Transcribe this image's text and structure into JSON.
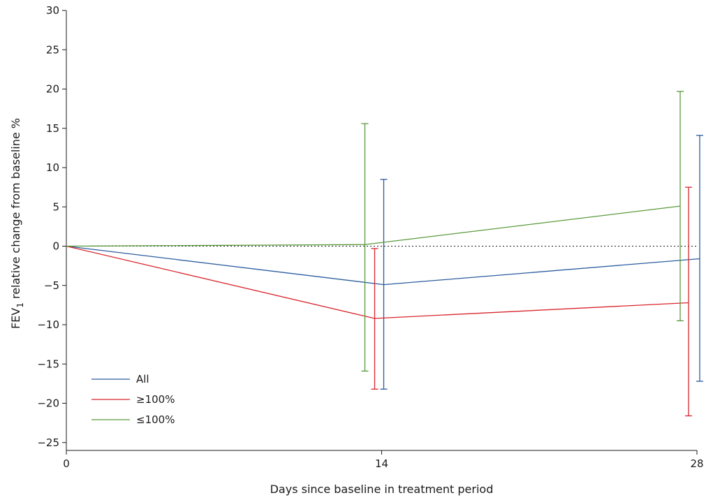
{
  "chart_data": {
    "type": "line",
    "title": "",
    "xlabel": "Days since baseline in treatment period",
    "ylabel_main": "FEV",
    "ylabel_sub": "1",
    "ylabel_rest": " relative change from baseline %",
    "x_ticks": [
      0,
      14,
      28
    ],
    "x_tick_labels": [
      "0",
      "14",
      "28"
    ],
    "xlim": [
      0,
      28
    ],
    "y_ticks": [
      -25,
      -20,
      -15,
      -10,
      -5,
      0,
      5,
      10,
      15,
      20,
      25,
      30
    ],
    "y_tick_labels": [
      "−25",
      "−20",
      "−15",
      "−10",
      "−5",
      "0",
      "5",
      "10",
      "15",
      "20",
      "25",
      "30"
    ],
    "ylim": [
      -26,
      30
    ],
    "reference_line": {
      "y": 0,
      "style": "dotted"
    },
    "grid": false,
    "legend_position": "bottom-left",
    "series": [
      {
        "name": "All",
        "color": "#2b5c9e",
        "x": [
          0,
          14,
          28
        ],
        "y": [
          0,
          -4.9,
          -1.6
        ],
        "error_low": [
          null,
          -18.2,
          -17.2
        ],
        "error_high": [
          null,
          8.5,
          14.1
        ]
      },
      {
        "name": "≥100%",
        "color": "#d9262e",
        "x": [
          0,
          14,
          28
        ],
        "y": [
          0,
          -9.2,
          -7.2
        ],
        "error_low": [
          null,
          -18.2,
          -21.6
        ],
        "error_high": [
          null,
          -0.3,
          7.5
        ]
      },
      {
        "name": "≤100%",
        "color": "#5a9a3c",
        "x": [
          0,
          14,
          28
        ],
        "y": [
          0,
          0.2,
          5.1
        ],
        "error_low": [
          null,
          -15.9,
          -9.5
        ],
        "error_high": [
          null,
          15.6,
          19.7
        ]
      }
    ]
  }
}
